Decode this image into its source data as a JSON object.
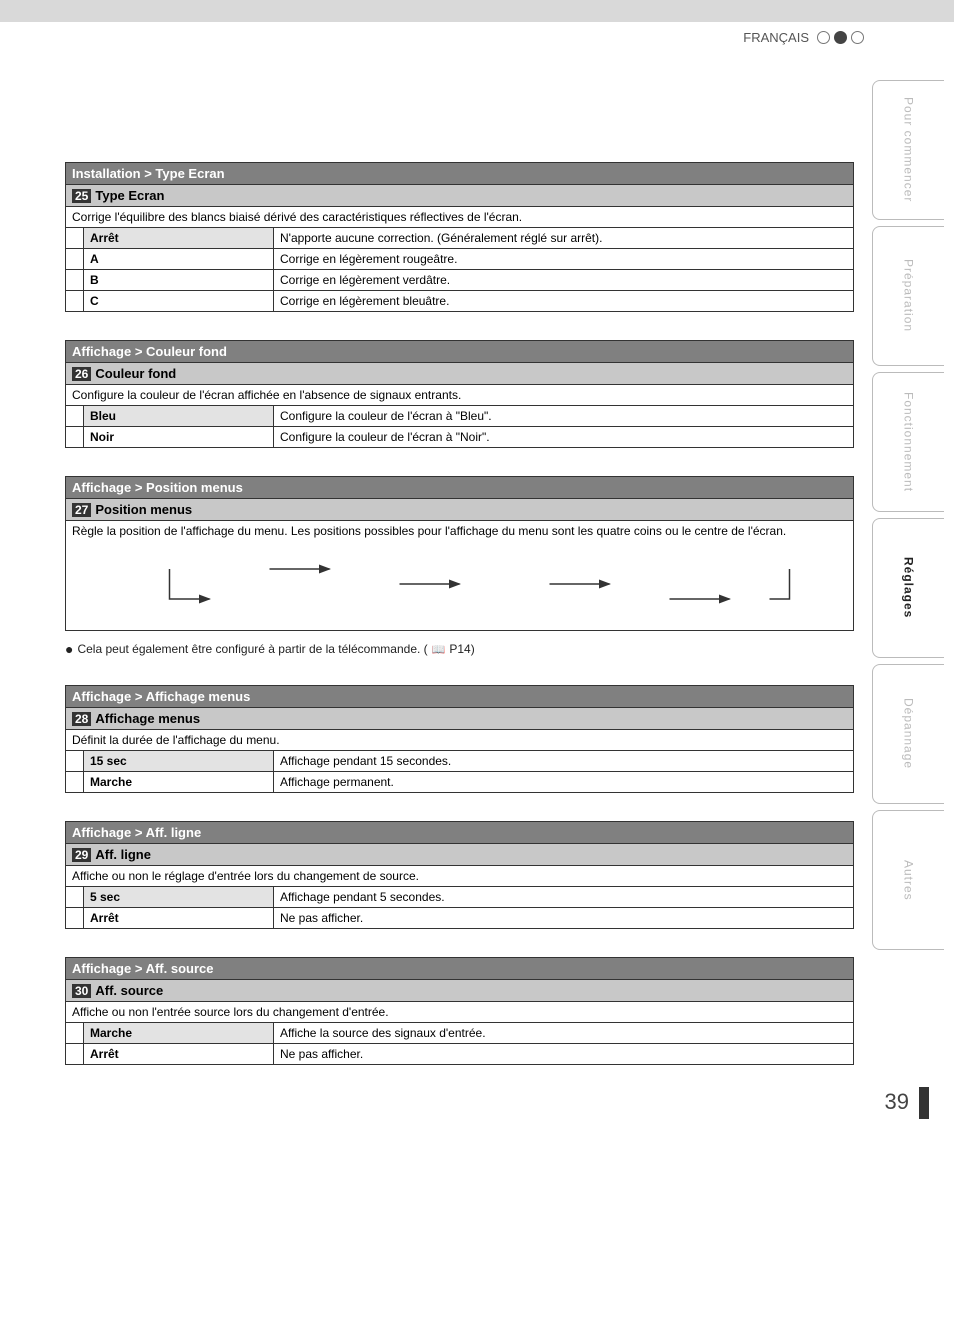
{
  "header": {
    "language": "FRANÇAIS"
  },
  "sideTabs": [
    {
      "label": "Pour commencer",
      "active": false
    },
    {
      "label": "Préparation",
      "active": false
    },
    {
      "label": "Fonctionnement",
      "active": false
    },
    {
      "label": "Réglages",
      "active": true
    },
    {
      "label": "Dépannage",
      "active": false
    },
    {
      "label": "Autres",
      "active": false
    }
  ],
  "pageNumber": "39",
  "sections": [
    {
      "breadcrumb": "Installation > Type Ecran",
      "num": "25",
      "title": "Type Ecran",
      "desc": "Corrige l'équilibre des blancs biaisé dérivé des caractéristiques réflectives de l'écran.",
      "options": [
        {
          "name": "Arrêt",
          "desc": "N'apporte aucune correction. (Généralement réglé sur arrêt).",
          "selected": true
        },
        {
          "name": "A",
          "desc": "Corrige en légèrement rougeâtre.",
          "selected": false
        },
        {
          "name": "B",
          "desc": "Corrige en légèrement verdâtre.",
          "selected": false
        },
        {
          "name": "C",
          "desc": "Corrige en légèrement bleuâtre.",
          "selected": false
        }
      ]
    },
    {
      "breadcrumb": "Affichage > Couleur fond",
      "num": "26",
      "title": "Couleur fond",
      "desc": "Configure la couleur de l'écran affichée en l'absence de signaux entrants.",
      "options": [
        {
          "name": "Bleu",
          "desc": "Configure la couleur de l'écran à \"Bleu\".",
          "selected": true
        },
        {
          "name": "Noir",
          "desc": "Configure la couleur de l'écran à \"Noir\".",
          "selected": false
        }
      ]
    },
    {
      "breadcrumb": "Affichage > Position menus",
      "num": "27",
      "title": "Position menus",
      "desc": "Règle la position de l'affichage du menu. Les positions possibles pour l'affichage du menu sont les quatre coins ou le centre de l'écran.",
      "diagram": true,
      "note": "Cela peut également être configuré à partir de la télécommande.",
      "noteRef": "P14"
    },
    {
      "breadcrumb": "Affichage > Affichage menus",
      "num": "28",
      "title": "Affichage menus",
      "desc": "Définit la durée de l'affichage du menu.",
      "options": [
        {
          "name": "15 sec",
          "desc": "Affichage pendant 15 secondes.",
          "selected": true
        },
        {
          "name": "Marche",
          "desc": "Affichage permanent.",
          "selected": false
        }
      ]
    },
    {
      "breadcrumb": "Affichage > Aff. ligne",
      "num": "29",
      "title": "Aff. ligne",
      "desc": "Affiche ou non le réglage d'entrée lors du changement de source.",
      "options": [
        {
          "name": "5 sec",
          "desc": "Affichage pendant 5 secondes.",
          "selected": true
        },
        {
          "name": "Arrêt",
          "desc": "Ne pas afficher.",
          "selected": false
        }
      ]
    },
    {
      "breadcrumb": "Affichage > Aff. source",
      "num": "30",
      "title": "Aff. source",
      "desc": "Affiche ou non l'entrée source lors du changement d'entrée.",
      "options": [
        {
          "name": "Marche",
          "desc": "Affiche la source des signaux d'entrée.",
          "selected": true
        },
        {
          "name": "Arrêt",
          "desc": "Ne pas afficher.",
          "selected": false
        }
      ]
    }
  ]
}
